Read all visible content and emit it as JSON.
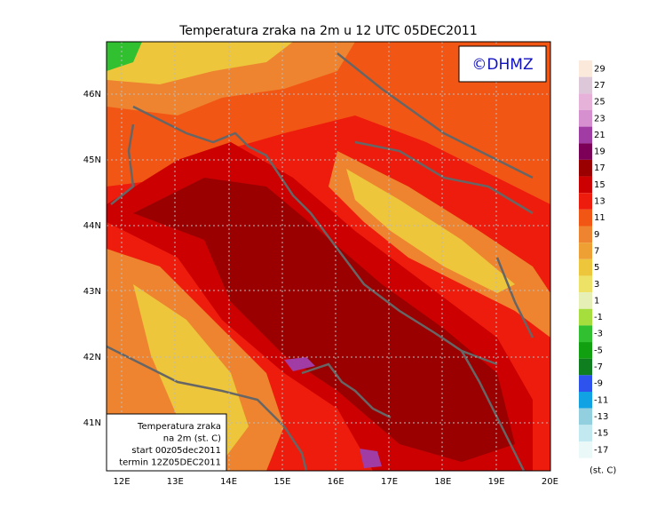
{
  "title": "Temperatura zraka na 2m u 12 UTC 05DEC2011",
  "logo": "©DHMZ",
  "lat_labels": [
    "46N",
    "45N",
    "44N",
    "43N",
    "42N",
    "41N"
  ],
  "lon_labels": [
    "12E",
    "13E",
    "14E",
    "15E",
    "16E",
    "17E",
    "18E",
    "19E",
    "20E"
  ],
  "legend": {
    "unit": "(st. C)",
    "items": [
      {
        "label": "29",
        "color": "#fbe9dc"
      },
      {
        "label": "27",
        "color": "#dcc8d8"
      },
      {
        "label": "25",
        "color": "#e6b2da"
      },
      {
        "label": "23",
        "color": "#d690cf"
      },
      {
        "label": "21",
        "color": "#a03ca4"
      },
      {
        "label": "19",
        "color": "#7c0058"
      },
      {
        "label": "17",
        "color": "#9a0000"
      },
      {
        "label": "15",
        "color": "#cc0000"
      },
      {
        "label": "13",
        "color": "#ee1c0c"
      },
      {
        "label": "11",
        "color": "#f25614"
      },
      {
        "label": "9",
        "color": "#ee8430"
      },
      {
        "label": "7",
        "color": "#eea034"
      },
      {
        "label": "5",
        "color": "#eec63c"
      },
      {
        "label": "3",
        "color": "#eee266"
      },
      {
        "label": "1",
        "color": "#e6f0b6"
      },
      {
        "label": "-1",
        "color": "#a6de3e"
      },
      {
        "label": "-3",
        "color": "#30c030"
      },
      {
        "label": "-5",
        "color": "#10a010"
      },
      {
        "label": "-7",
        "color": "#0e7e1e"
      },
      {
        "label": "-9",
        "color": "#2e52ee"
      },
      {
        "label": "-11",
        "color": "#10a2e2"
      },
      {
        "label": "-13",
        "color": "#92d0e0"
      },
      {
        "label": "-15",
        "color": "#c2e8f0"
      },
      {
        "label": "-17",
        "color": "#eaf8f8"
      }
    ]
  },
  "info_box": [
    "Temperatura zraka",
    "na 2m (st. C)",
    "start 00z05dec2011",
    "termin 12Z05DEC2011"
  ]
}
